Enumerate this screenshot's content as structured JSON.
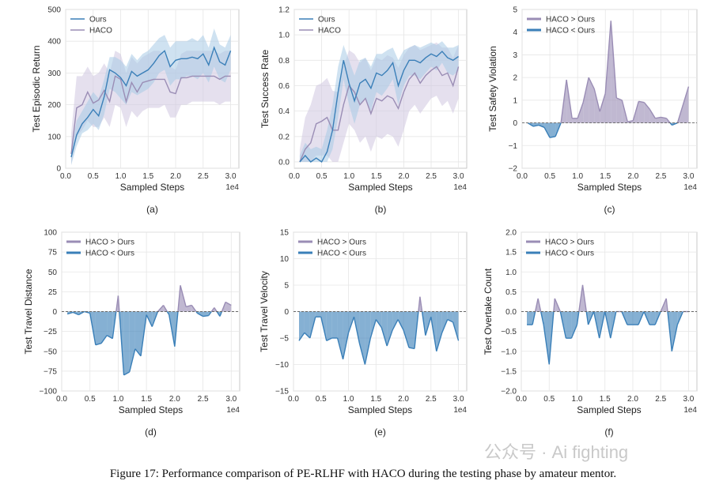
{
  "figure": {
    "caption": "Figure 17: Performance comparison of PE-RLHF with HACO during the testing phase by amateur mentor.",
    "watermark": "公众号 · Ai fighting",
    "colors": {
      "ours": "#3a7fb8",
      "haco": "#9a8db5",
      "ours_band": "#a8cbe6",
      "haco_band": "#cfc7e0",
      "grid": "#e6e6e6",
      "dash": "#666666"
    }
  },
  "chart_data": [
    {
      "panel": "(a)",
      "type": "line",
      "title": "",
      "xlabel": "Sampled Steps",
      "ylabel": "Test Episodic Return",
      "xlim": [
        0,
        3.15
      ],
      "ylim": [
        0,
        500
      ],
      "xticks": [
        "0.0",
        "0.5",
        "1.0",
        "1.5",
        "2.0",
        "2.5",
        "3.0"
      ],
      "yticks": [
        "0",
        "100",
        "200",
        "300",
        "400",
        "500"
      ],
      "offset_label": "1e4",
      "legend": "top-left",
      "x": [
        0.1,
        0.2,
        0.3,
        0.4,
        0.5,
        0.6,
        0.7,
        0.8,
        0.9,
        1.0,
        1.1,
        1.2,
        1.3,
        1.4,
        1.5,
        1.6,
        1.7,
        1.8,
        1.9,
        2.0,
        2.1,
        2.2,
        2.3,
        2.4,
        2.5,
        2.6,
        2.7,
        2.8,
        2.9,
        3.0
      ],
      "series": [
        {
          "name": "Ours",
          "values": [
            35,
            105,
            140,
            160,
            185,
            165,
            225,
            310,
            300,
            285,
            260,
            305,
            290,
            300,
            310,
            330,
            355,
            370,
            320,
            340,
            345,
            345,
            350,
            345,
            360,
            325,
            380,
            335,
            325,
            370
          ],
          "band": [
            [
              10,
              60
            ],
            [
              70,
              150
            ],
            [
              110,
              180
            ],
            [
              120,
              210
            ],
            [
              140,
              240
            ],
            [
              120,
              220
            ],
            [
              170,
              280
            ],
            [
              250,
              350
            ],
            [
              240,
              350
            ],
            [
              220,
              340
            ],
            [
              200,
              320
            ],
            [
              240,
              360
            ],
            [
              230,
              340
            ],
            [
              240,
              360
            ],
            [
              250,
              370
            ],
            [
              270,
              390
            ],
            [
              300,
              410
            ],
            [
              310,
              420
            ],
            [
              260,
              380
            ],
            [
              280,
              400
            ],
            [
              280,
              400
            ],
            [
              290,
              400
            ],
            [
              290,
              410
            ],
            [
              280,
              400
            ],
            [
              300,
              420
            ],
            [
              270,
              380
            ],
            [
              320,
              440
            ],
            [
              280,
              390
            ],
            [
              270,
              380
            ],
            [
              310,
              420
            ]
          ]
        },
        {
          "name": "HACO",
          "values": [
            45,
            190,
            200,
            240,
            205,
            215,
            245,
            210,
            290,
            280,
            210,
            270,
            240,
            270,
            275,
            280,
            280,
            280,
            240,
            235,
            285,
            285,
            290,
            290,
            290,
            290,
            290,
            280,
            290,
            290
          ],
          "band": [
            [
              10,
              110
            ],
            [
              100,
              290
            ],
            [
              120,
              290
            ],
            [
              150,
              320
            ],
            [
              130,
              290
            ],
            [
              130,
              300
            ],
            [
              160,
              330
            ],
            [
              130,
              300
            ],
            [
              200,
              370
            ],
            [
              190,
              360
            ],
            [
              130,
              300
            ],
            [
              180,
              350
            ],
            [
              160,
              330
            ],
            [
              180,
              350
            ],
            [
              190,
              360
            ],
            [
              190,
              370
            ],
            [
              190,
              370
            ],
            [
              200,
              360
            ],
            [
              160,
              320
            ],
            [
              160,
              310
            ],
            [
              200,
              360
            ],
            [
              200,
              370
            ],
            [
              210,
              370
            ],
            [
              210,
              370
            ],
            [
              210,
              370
            ],
            [
              210,
              370
            ],
            [
              210,
              370
            ],
            [
              200,
              360
            ],
            [
              210,
              370
            ],
            [
              210,
              370
            ]
          ]
        }
      ]
    },
    {
      "panel": "(b)",
      "type": "line",
      "title": "",
      "xlabel": "Sampled Steps",
      "ylabel": "Test Success Rate",
      "xlim": [
        0,
        3.15
      ],
      "ylim": [
        -0.05,
        1.2
      ],
      "xticks": [
        "0.0",
        "0.5",
        "1.0",
        "1.5",
        "2.0",
        "2.5",
        "3.0"
      ],
      "yticks": [
        "0.0",
        "0.2",
        "0.4",
        "0.6",
        "0.8",
        "1.0",
        "1.2"
      ],
      "offset_label": "1e4",
      "legend": "top-left",
      "x": [
        0.1,
        0.2,
        0.3,
        0.4,
        0.5,
        0.6,
        0.7,
        0.8,
        0.9,
        1.0,
        1.1,
        1.2,
        1.3,
        1.4,
        1.5,
        1.6,
        1.7,
        1.8,
        1.9,
        2.0,
        2.1,
        2.2,
        2.3,
        2.4,
        2.5,
        2.6,
        2.7,
        2.8,
        2.9,
        3.0
      ],
      "series": [
        {
          "name": "Ours",
          "values": [
            0.0,
            0.05,
            0.0,
            0.03,
            0.0,
            0.08,
            0.25,
            0.55,
            0.8,
            0.62,
            0.48,
            0.62,
            0.65,
            0.58,
            0.7,
            0.68,
            0.72,
            0.78,
            0.6,
            0.72,
            0.8,
            0.8,
            0.78,
            0.82,
            0.85,
            0.83,
            0.87,
            0.82,
            0.8,
            0.83
          ],
          "band": [
            [
              0,
              0.05
            ],
            [
              0,
              0.15
            ],
            [
              0,
              0.1
            ],
            [
              0,
              0.12
            ],
            [
              0,
              0.1
            ],
            [
              0,
              0.25
            ],
            [
              0.1,
              0.45
            ],
            [
              0.35,
              0.75
            ],
            [
              0.65,
              0.92
            ],
            [
              0.45,
              0.8
            ],
            [
              0.3,
              0.68
            ],
            [
              0.45,
              0.8
            ],
            [
              0.5,
              0.82
            ],
            [
              0.4,
              0.75
            ],
            [
              0.55,
              0.85
            ],
            [
              0.52,
              0.85
            ],
            [
              0.58,
              0.88
            ],
            [
              0.65,
              0.9
            ],
            [
              0.45,
              0.8
            ],
            [
              0.6,
              0.88
            ],
            [
              0.68,
              0.9
            ],
            [
              0.68,
              0.92
            ],
            [
              0.65,
              0.9
            ],
            [
              0.7,
              0.92
            ],
            [
              0.75,
              0.94
            ],
            [
              0.72,
              0.92
            ],
            [
              0.78,
              0.95
            ],
            [
              0.7,
              0.9
            ],
            [
              0.68,
              0.9
            ],
            [
              0.72,
              0.92
            ]
          ]
        },
        {
          "name": "HACO",
          "values": [
            0.0,
            0.1,
            0.15,
            0.3,
            0.32,
            0.35,
            0.25,
            0.25,
            0.45,
            0.6,
            0.55,
            0.45,
            0.5,
            0.38,
            0.5,
            0.48,
            0.52,
            0.5,
            0.42,
            0.55,
            0.65,
            0.7,
            0.62,
            0.68,
            0.72,
            0.75,
            0.68,
            0.7,
            0.6,
            0.75
          ],
          "band": [
            [
              0,
              0.1
            ],
            [
              0,
              0.35
            ],
            [
              0,
              0.45
            ],
            [
              0.05,
              0.6
            ],
            [
              0.05,
              0.62
            ],
            [
              0.05,
              0.66
            ],
            [
              0,
              0.56
            ],
            [
              0,
              0.55
            ],
            [
              0.15,
              0.75
            ],
            [
              0.3,
              0.88
            ],
            [
              0.25,
              0.85
            ],
            [
              0.15,
              0.78
            ],
            [
              0.2,
              0.82
            ],
            [
              0.08,
              0.72
            ],
            [
              0.2,
              0.82
            ],
            [
              0.18,
              0.8
            ],
            [
              0.22,
              0.84
            ],
            [
              0.2,
              0.82
            ],
            [
              0.12,
              0.74
            ],
            [
              0.25,
              0.84
            ],
            [
              0.4,
              0.9
            ],
            [
              0.45,
              0.92
            ],
            [
              0.38,
              0.88
            ],
            [
              0.44,
              0.9
            ],
            [
              0.5,
              0.92
            ],
            [
              0.52,
              0.94
            ],
            [
              0.44,
              0.9
            ],
            [
              0.48,
              0.9
            ],
            [
              0.38,
              0.82
            ],
            [
              0.5,
              0.92
            ]
          ]
        }
      ]
    },
    {
      "panel": "(c)",
      "type": "area",
      "title": "",
      "xlabel": "Sampled Steps",
      "ylabel": "Test Safety Violation",
      "xlim": [
        0,
        3.15
      ],
      "ylim": [
        -2,
        5
      ],
      "xticks": [
        "0.0",
        "0.5",
        "1.0",
        "1.5",
        "2.0",
        "2.5",
        "3.0"
      ],
      "yticks": [
        "−2",
        "−1",
        "0",
        "1",
        "2",
        "3",
        "4",
        "5"
      ],
      "offset_label": "1e4",
      "legend": "top-left",
      "legend_labels": [
        "HACO > Ours",
        "HACO < Ours"
      ],
      "x": [
        0.1,
        0.2,
        0.3,
        0.4,
        0.5,
        0.6,
        0.7,
        0.8,
        0.9,
        1.0,
        1.1,
        1.2,
        1.3,
        1.4,
        1.5,
        1.6,
        1.7,
        1.8,
        1.9,
        2.0,
        2.1,
        2.2,
        2.3,
        2.4,
        2.5,
        2.6,
        2.7,
        2.8,
        2.9,
        3.0
      ],
      "values": [
        0.0,
        -0.15,
        -0.1,
        -0.2,
        -0.65,
        -0.6,
        0.0,
        1.9,
        0.2,
        0.2,
        0.9,
        2.0,
        1.5,
        0.5,
        1.3,
        4.5,
        1.1,
        1.0,
        0.05,
        0.1,
        0.95,
        0.9,
        0.6,
        0.2,
        0.25,
        0.2,
        -0.1,
        0.0,
        0.8,
        1.6
      ]
    },
    {
      "panel": "(d)",
      "type": "area",
      "title": "",
      "xlabel": "Sampled Steps",
      "ylabel": "Test Travel Distance",
      "xlim": [
        0,
        3.15
      ],
      "ylim": [
        -100,
        100
      ],
      "xticks": [
        "0.0",
        "0.5",
        "1.0",
        "1.5",
        "2.0",
        "2.5",
        "3.0"
      ],
      "yticks": [
        "−100",
        "−75",
        "−50",
        "−25",
        "0",
        "25",
        "50",
        "75",
        "100"
      ],
      "offset_label": "1e4",
      "legend": "top-left",
      "legend_labels": [
        "HACO > Ours",
        "HACO < Ours"
      ],
      "x": [
        0.1,
        0.2,
        0.3,
        0.4,
        0.5,
        0.6,
        0.7,
        0.8,
        0.9,
        1.0,
        1.1,
        1.2,
        1.3,
        1.4,
        1.5,
        1.6,
        1.7,
        1.8,
        1.9,
        2.0,
        2.1,
        2.2,
        2.3,
        2.4,
        2.5,
        2.6,
        2.7,
        2.8,
        2.9,
        3.0
      ],
      "values": [
        -3,
        -1,
        -4,
        0,
        -2,
        -42,
        -40,
        -30,
        -34,
        20,
        -80,
        -76,
        -47,
        -56,
        -4,
        -19,
        0,
        8,
        -4,
        -44,
        33,
        6,
        8,
        -2,
        -6,
        -5,
        5,
        -6,
        12,
        8
      ]
    },
    {
      "panel": "(e)",
      "type": "area",
      "title": "",
      "xlabel": "Sampled Steps",
      "ylabel": "Test Travel Velocity",
      "xlim": [
        0,
        3.15
      ],
      "ylim": [
        -15,
        15
      ],
      "xticks": [
        "0.0",
        "0.5",
        "1.0",
        "1.5",
        "2.0",
        "2.5",
        "3.0"
      ],
      "yticks": [
        "−15",
        "−10",
        "−5",
        "0",
        "5",
        "10",
        "15"
      ],
      "offset_label": "1e4",
      "legend": "top-left",
      "legend_labels": [
        "HACO > Ours",
        "HACO < Ours"
      ],
      "x": [
        0.1,
        0.2,
        0.3,
        0.4,
        0.5,
        0.6,
        0.7,
        0.8,
        0.9,
        1.0,
        1.1,
        1.2,
        1.3,
        1.4,
        1.5,
        1.6,
        1.7,
        1.8,
        1.9,
        2.0,
        2.1,
        2.2,
        2.3,
        2.4,
        2.5,
        2.6,
        2.7,
        2.8,
        2.9,
        3.0
      ],
      "values": [
        -5.5,
        -4,
        -5,
        -1,
        -1,
        -5.5,
        -5,
        -5,
        -9,
        -4,
        -1,
        -6,
        -10,
        -5,
        -1.5,
        -3,
        -6.5,
        -3.5,
        -1.5,
        -3.5,
        -6.8,
        -7,
        2.8,
        -4.5,
        -1,
        -7.5,
        -4,
        -1.5,
        -2,
        -5.5
      ]
    },
    {
      "panel": "(f)",
      "type": "area",
      "title": "",
      "xlabel": "Sampled Steps",
      "ylabel": "Test Overtake Count",
      "xlim": [
        0,
        3.15
      ],
      "ylim": [
        -2,
        2
      ],
      "xticks": [
        "0.0",
        "0.5",
        "1.0",
        "1.5",
        "2.0",
        "2.5",
        "3.0"
      ],
      "yticks": [
        "−2.0",
        "−1.5",
        "−1.0",
        "−0.5",
        "0.0",
        "0.5",
        "1.0",
        "1.5",
        "2.0"
      ],
      "offset_label": "1e4",
      "legend": "top-left",
      "legend_labels": [
        "HACO > Ours",
        "HACO < Ours"
      ],
      "x": [
        0.1,
        0.2,
        0.3,
        0.4,
        0.5,
        0.6,
        0.7,
        0.8,
        0.9,
        1.0,
        1.1,
        1.2,
        1.3,
        1.4,
        1.5,
        1.6,
        1.7,
        1.8,
        1.9,
        2.0,
        2.1,
        2.2,
        2.3,
        2.4,
        2.5,
        2.6,
        2.7,
        2.8,
        2.9,
        3.0
      ],
      "values": [
        -0.33,
        -0.33,
        0.33,
        -0.33,
        -1.33,
        0.33,
        0.0,
        -0.67,
        -0.67,
        -0.33,
        0.67,
        -0.33,
        0.0,
        -0.67,
        0.0,
        -0.67,
        0.0,
        0.0,
        -0.33,
        -0.33,
        -0.33,
        0.0,
        -0.33,
        -0.33,
        0.0,
        0.33,
        -1.0,
        -0.33,
        0.0,
        0.0
      ]
    }
  ]
}
